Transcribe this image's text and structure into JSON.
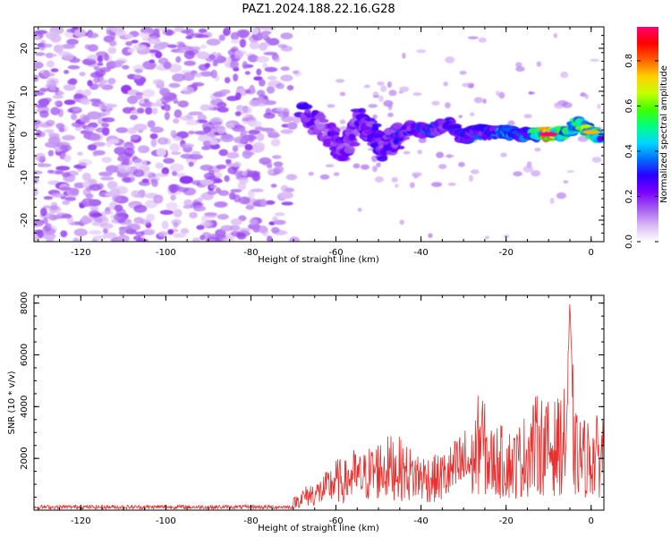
{
  "title": "PAZ1.2024.188.22.16.G28",
  "chart_data": [
    {
      "type": "heatmap",
      "xlabel": "Height of straight line (km)",
      "ylabel": "Frequency (Hz)",
      "xlim": [
        -131,
        3
      ],
      "ylim": [
        -25,
        25
      ],
      "xticks": [
        "-120",
        "-100",
        "-80",
        "-60",
        "-40",
        "-20",
        "0"
      ],
      "yticks": [
        "-20",
        "-10",
        "0",
        "10",
        "20"
      ],
      "colorbar": {
        "label": "Normalized spectral amplitude",
        "ticks": [
          "0.0",
          "0.2",
          "0.4",
          "0.6",
          "0.8"
        ],
        "range": [
          0,
          0.95
        ],
        "colormap": [
          "#ffffff",
          "#d9b8f5",
          "#a35cf0",
          "#7b00ff",
          "#2a00ff",
          "#0070ff",
          "#00d8ff",
          "#00ff80",
          "#40ff00",
          "#c8ff00",
          "#ffd000",
          "#ff6000",
          "#ff0000",
          "#ff0070"
        ]
      },
      "features": {
        "noise_region_x": [
          -131,
          -68
        ],
        "noise_amplitude": 0.15,
        "signal_track": [
          {
            "x": -68,
            "y": 5.5,
            "amp": 0.32
          },
          {
            "x": -62,
            "y": 0.5,
            "amp": 0.22
          },
          {
            "x": -58,
            "y": -4.5,
            "amp": 0.3
          },
          {
            "x": -55,
            "y": 3.5,
            "amp": 0.28
          },
          {
            "x": -52,
            "y": 1.0,
            "amp": 0.3
          },
          {
            "x": -49,
            "y": -3.5,
            "amp": 0.28
          },
          {
            "x": -46,
            "y": -1.0,
            "amp": 0.32
          },
          {
            "x": -42,
            "y": 1.5,
            "amp": 0.34
          },
          {
            "x": -38,
            "y": 0.5,
            "amp": 0.36
          },
          {
            "x": -34,
            "y": 2.5,
            "amp": 0.34
          },
          {
            "x": -30,
            "y": -0.5,
            "amp": 0.38
          },
          {
            "x": -27,
            "y": 0.5,
            "amp": 0.36
          },
          {
            "x": -24,
            "y": 0.5,
            "amp": 0.4
          },
          {
            "x": -20,
            "y": 0.5,
            "amp": 0.44
          },
          {
            "x": -17,
            "y": 0.0,
            "amp": 0.4
          },
          {
            "x": -14,
            "y": 0.0,
            "amp": 0.42
          },
          {
            "x": -10,
            "y": 0.0,
            "amp": 0.95
          },
          {
            "x": -7,
            "y": 0.0,
            "amp": 0.6
          },
          {
            "x": -3,
            "y": 2.5,
            "amp": 0.55
          },
          {
            "x": 0,
            "y": 0.5,
            "amp": 0.75
          },
          {
            "x": 2,
            "y": -0.5,
            "amp": 0.5
          }
        ]
      }
    },
    {
      "type": "line",
      "xlabel": "Height of straight line (km)",
      "ylabel": "SNR (10 * v/v)",
      "xlim": [
        -131,
        3
      ],
      "ylim": [
        0,
        8300
      ],
      "xticks": [
        "-120",
        "-100",
        "-80",
        "-60",
        "-40",
        "-20",
        "0"
      ],
      "yticks": [
        "2000",
        "4000",
        "6000",
        "8000"
      ],
      "color": "#e8302e",
      "series": [
        {
          "x": [
            -131,
            -120,
            -110,
            -100,
            -90,
            -80,
            -73,
            -70,
            -68,
            -66,
            -64,
            -62,
            -60,
            -58,
            -56,
            -54,
            -52,
            -50,
            -48,
            -46,
            -44,
            -42,
            -40,
            -38,
            -36,
            -34,
            -32,
            -30,
            -28,
            -26,
            -24,
            -22,
            -20,
            -18,
            -16,
            -14,
            -12,
            -10,
            -8,
            -6,
            -5,
            -4,
            -2,
            0,
            2,
            3
          ],
          "y": [
            120,
            120,
            120,
            120,
            120,
            130,
            200,
            400,
            700,
            900,
            1000,
            1300,
            1700,
            1600,
            2000,
            1800,
            2100,
            2300,
            2400,
            2500,
            2200,
            2000,
            1900,
            1800,
            1800,
            2000,
            2300,
            2700,
            2600,
            4200,
            2700,
            2800,
            2700,
            2600,
            3000,
            3600,
            3800,
            3500,
            3600,
            4000,
            8200,
            3200,
            3000,
            3000,
            3100,
            3400
          ]
        }
      ]
    }
  ]
}
